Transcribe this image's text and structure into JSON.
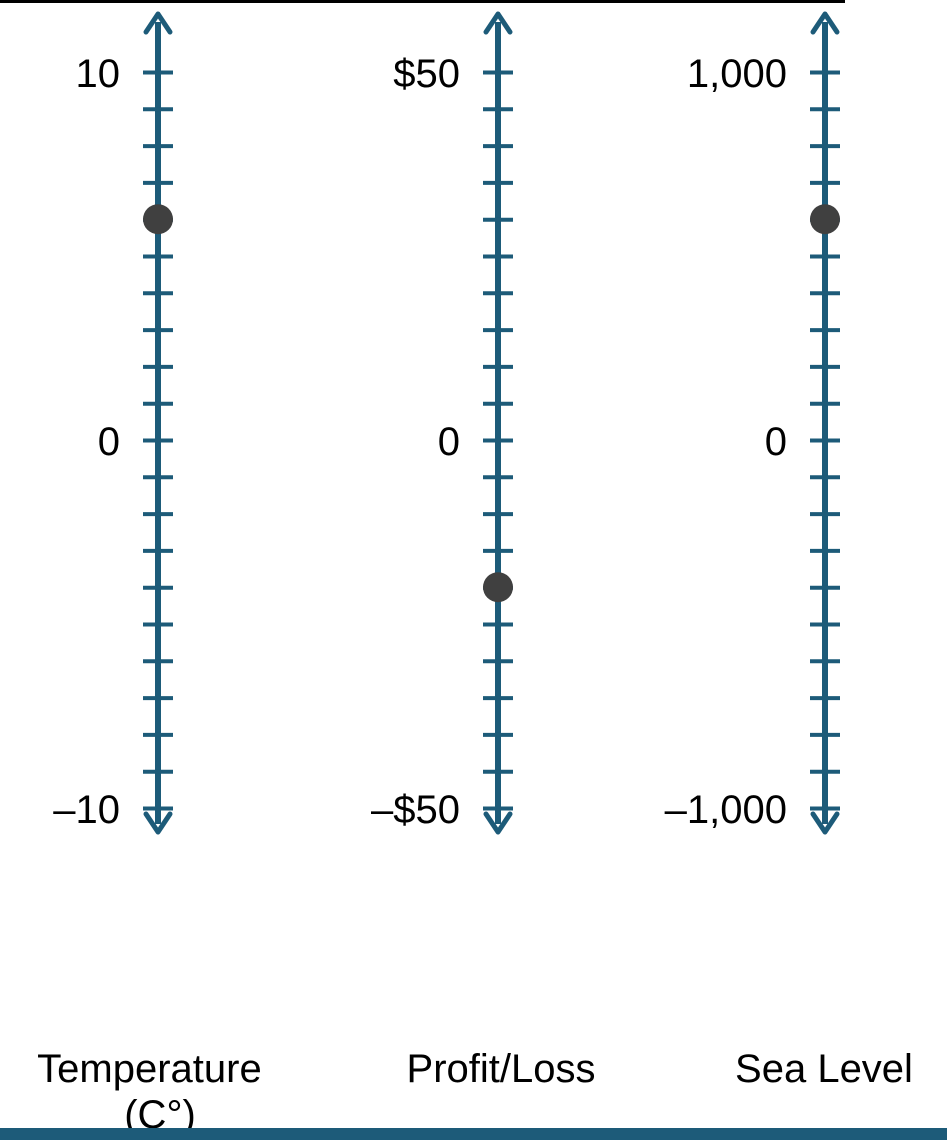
{
  "colors": {
    "axis": "#1d5b79",
    "point": "#404040",
    "bottom_bar": "#1d5b79",
    "text": "#000000"
  },
  "chart_data": [
    {
      "type": "scatter",
      "orientation": "vertical number line",
      "xlabel": "Temperature (C°)",
      "ylim": [
        -10,
        10
      ],
      "tick_interval": 1,
      "tick_labels": [
        {
          "value": 10,
          "text": "10"
        },
        {
          "value": 0,
          "text": "0"
        },
        {
          "value": -10,
          "text": "–10"
        }
      ],
      "points": [
        6
      ]
    },
    {
      "type": "scatter",
      "orientation": "vertical number line",
      "xlabel": "Profit/Loss",
      "ylim": [
        -50,
        50
      ],
      "tick_interval": 5,
      "tick_labels": [
        {
          "value": 50,
          "text": "$50"
        },
        {
          "value": 0,
          "text": "0"
        },
        {
          "value": -50,
          "text": "–$50"
        }
      ],
      "points": [
        -20
      ]
    },
    {
      "type": "scatter",
      "orientation": "vertical number line",
      "xlabel": "Sea Level",
      "ylim": [
        -1000,
        1000
      ],
      "tick_interval": 100,
      "tick_labels": [
        {
          "value": 1000,
          "text": "1,000"
        },
        {
          "value": 0,
          "text": "0"
        },
        {
          "value": -1000,
          "text": "–1,000"
        }
      ],
      "points": [
        600
      ]
    }
  ]
}
